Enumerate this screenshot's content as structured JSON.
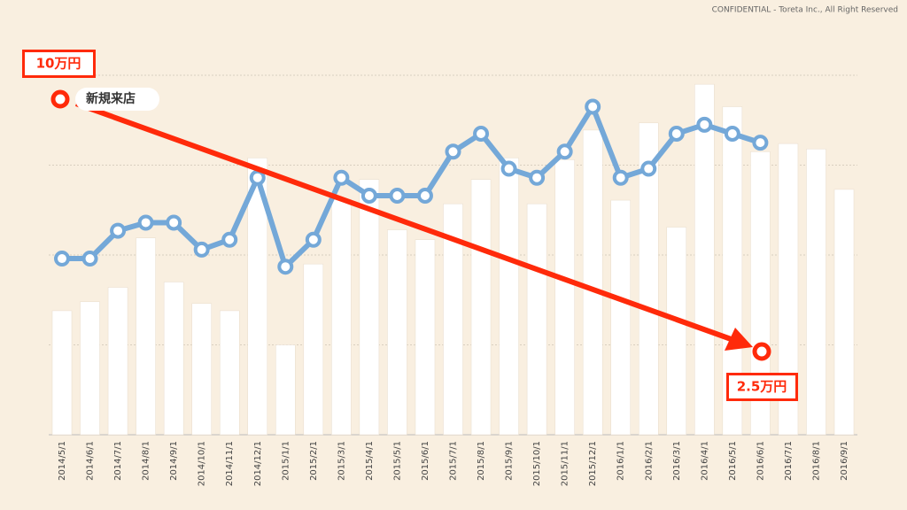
{
  "chart_data": {
    "type": "bar_line",
    "notice": "CONFIDENTIAL - Toreta Inc., All Right Reserved",
    "annotations": [
      "10万円",
      "新規来店",
      "2.5万円"
    ],
    "categories": [
      "2014/5/1",
      "2014/6/1",
      "2014/7/1",
      "2014/8/1",
      "2014/9/1",
      "2014/10/1",
      "2014/11/1",
      "2014/12/1",
      "2015/1/1",
      "2015/2/1",
      "2015/3/1",
      "2015/4/1",
      "2015/5/1",
      "2015/6/1",
      "2015/7/1",
      "2015/8/1",
      "2015/9/1",
      "2015/10/1",
      "2015/11/1",
      "2015/12/1",
      "2016/1/1",
      "2016/2/1",
      "2016/3/1",
      "2016/4/1",
      "2016/5/1",
      "2016/6/1",
      "2016/7/1",
      "2016/8/1",
      "2016/9/1"
    ],
    "series": [
      {
        "type": "bar",
        "color": "#ffffff",
        "values": [
          1.38,
          1.48,
          1.64,
          2.19,
          1.7,
          1.46,
          1.38,
          3.08,
          1.0,
          1.9,
          2.62,
          2.84,
          2.28,
          2.17,
          2.57,
          2.84,
          3.08,
          2.57,
          3.06,
          3.39,
          2.61,
          3.47,
          2.31,
          3.9,
          3.65,
          3.15,
          3.24,
          3.18,
          2.73
        ]
      },
      {
        "type": "line",
        "color": "#74a8d8",
        "values": [
          1.96,
          1.96,
          2.27,
          2.36,
          2.36,
          2.06,
          2.17,
          2.86,
          1.87,
          2.17,
          2.86,
          2.66,
          2.66,
          2.66,
          3.15,
          3.35,
          2.96,
          2.86,
          3.15,
          3.65,
          2.86,
          2.96,
          3.35,
          3.45,
          3.35,
          3.25,
          null,
          null,
          null
        ]
      }
    ],
    "ylim": [
      0,
      4
    ],
    "yticks": [
      0,
      1,
      2,
      3,
      4
    ],
    "grid": true
  }
}
